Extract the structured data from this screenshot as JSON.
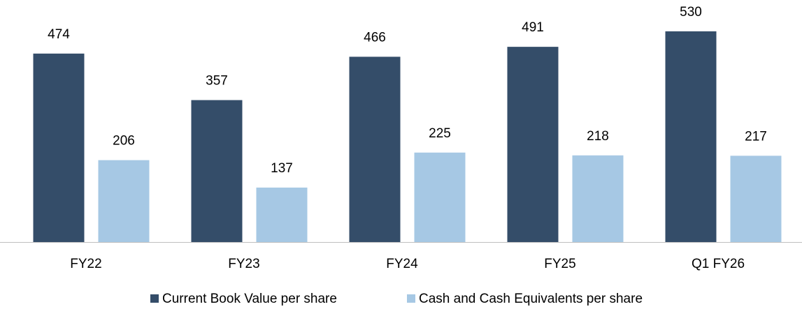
{
  "chart_data": {
    "type": "bar",
    "categories": [
      "FY22",
      "FY23",
      "FY24",
      "FY25",
      "Q1 FY26"
    ],
    "series": [
      {
        "name": "Current Book Value per share",
        "color": "#344d69",
        "values": [
          474,
          357,
          466,
          491,
          530
        ]
      },
      {
        "name": "Cash and Cash Equivalents per share",
        "color": "#a6c8e4",
        "values": [
          206,
          137,
          225,
          218,
          217
        ]
      }
    ],
    "ylim": [
      0,
      600
    ],
    "legend": "bottom"
  }
}
